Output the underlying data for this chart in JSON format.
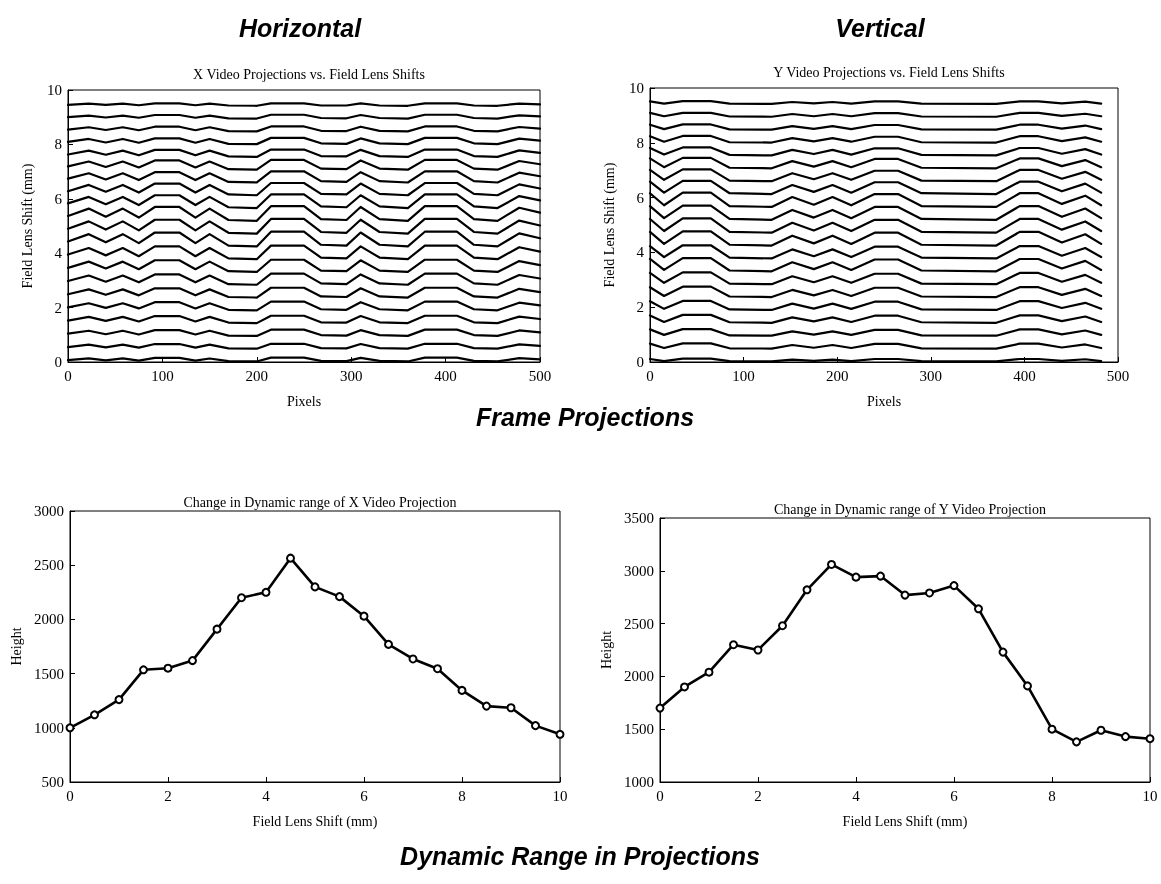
{
  "chart_data": [
    {
      "type": "line",
      "title": "X Video Projections vs. Field Lens Shifts",
      "xlabel": "Pixels",
      "ylabel": "Field Lens Shift (mm)",
      "annotations": [
        "Horizontal",
        "Frame Projections"
      ],
      "xlim": [
        0,
        500
      ],
      "xticks": [
        0,
        100,
        200,
        300,
        400,
        500
      ],
      "ylim": [
        0,
        10
      ],
      "yticks": [
        0,
        2,
        4,
        6,
        8,
        10
      ],
      "grid": false,
      "marker": "none",
      "x": [
        0,
        22,
        40,
        58,
        75,
        92,
        118,
        135,
        150,
        170,
        200,
        215,
        250,
        268,
        295,
        310,
        330,
        360,
        378,
        412,
        430,
        455,
        478,
        500
      ],
      "series": [
        {
          "color": "#000000",
          "values": [
            0.07,
            0.13,
            0.06,
            0.13,
            0.05,
            0.15,
            0.15,
            0.05,
            0.13,
            0.03,
            0.02,
            0.16,
            0.16,
            0.04,
            0.03,
            0.15,
            0.04,
            0.02,
            0.16,
            0.16,
            0.04,
            0.02,
            0.14,
            0.1
          ]
        },
        {
          "color": "#000000",
          "values": [
            0.55,
            0.64,
            0.54,
            0.64,
            0.53,
            0.66,
            0.66,
            0.53,
            0.64,
            0.5,
            0.49,
            0.67,
            0.67,
            0.51,
            0.5,
            0.66,
            0.51,
            0.49,
            0.67,
            0.67,
            0.51,
            0.49,
            0.65,
            0.59
          ]
        },
        {
          "color": "#000000",
          "values": [
            1.04,
            1.15,
            1.02,
            1.15,
            1.01,
            1.17,
            1.17,
            1.01,
            1.15,
            0.97,
            0.96,
            1.19,
            1.19,
            0.99,
            0.97,
            1.17,
            0.99,
            0.96,
            1.19,
            1.19,
            0.99,
            0.96,
            1.16,
            1.09
          ]
        },
        {
          "color": "#000000",
          "values": [
            1.52,
            1.66,
            1.51,
            1.66,
            1.49,
            1.69,
            1.69,
            1.49,
            1.66,
            1.45,
            1.43,
            1.7,
            1.7,
            1.46,
            1.45,
            1.69,
            1.46,
            1.43,
            1.7,
            1.7,
            1.46,
            1.43,
            1.67,
            1.58
          ]
        },
        {
          "color": "#000000",
          "values": [
            2.01,
            2.16,
            1.99,
            2.16,
            1.97,
            2.2,
            2.2,
            1.97,
            2.16,
            1.92,
            1.9,
            2.22,
            2.22,
            1.94,
            1.92,
            2.2,
            1.94,
            1.9,
            2.22,
            2.22,
            1.94,
            1.9,
            2.18,
            2.08
          ]
        },
        {
          "color": "#000000",
          "values": [
            2.49,
            2.67,
            2.47,
            2.67,
            2.45,
            2.71,
            2.71,
            2.45,
            2.67,
            2.39,
            2.37,
            2.73,
            2.73,
            2.41,
            2.39,
            2.71,
            2.41,
            2.37,
            2.73,
            2.73,
            2.41,
            2.37,
            2.69,
            2.57
          ]
        },
        {
          "color": "#000000",
          "values": [
            2.98,
            3.18,
            2.95,
            3.18,
            2.93,
            3.22,
            3.22,
            2.93,
            3.18,
            2.86,
            2.84,
            3.25,
            3.25,
            2.89,
            2.86,
            3.22,
            2.89,
            2.84,
            3.25,
            3.25,
            2.89,
            2.84,
            3.2,
            3.07
          ]
        },
        {
          "color": "#000000",
          "values": [
            3.46,
            3.69,
            3.44,
            3.69,
            3.41,
            3.74,
            3.74,
            3.41,
            3.69,
            3.34,
            3.31,
            3.76,
            3.76,
            3.36,
            3.34,
            3.74,
            3.36,
            3.31,
            3.76,
            3.76,
            3.36,
            3.31,
            3.71,
            3.56
          ]
        },
        {
          "color": "#000000",
          "values": [
            3.95,
            4.19,
            3.92,
            4.19,
            3.89,
            4.25,
            4.25,
            3.89,
            4.19,
            3.81,
            3.78,
            4.28,
            4.28,
            3.84,
            3.81,
            4.25,
            3.84,
            3.78,
            4.28,
            4.28,
            3.84,
            3.78,
            4.22,
            4.06
          ]
        },
        {
          "color": "#000000",
          "values": [
            4.43,
            4.7,
            4.4,
            4.7,
            4.37,
            4.76,
            4.76,
            4.37,
            4.7,
            4.28,
            4.25,
            4.79,
            4.79,
            4.31,
            4.28,
            4.76,
            4.31,
            4.25,
            4.79,
            4.79,
            4.31,
            4.25,
            4.73,
            4.55
          ]
        },
        {
          "color": "#000000",
          "values": [
            4.9,
            5.17,
            4.87,
            5.17,
            4.84,
            5.23,
            5.23,
            4.84,
            5.17,
            4.75,
            4.72,
            5.26,
            5.26,
            4.78,
            4.75,
            5.23,
            4.78,
            4.72,
            5.26,
            5.26,
            4.78,
            4.72,
            5.2,
            5.02
          ]
        },
        {
          "color": "#000000",
          "values": [
            5.37,
            5.64,
            5.34,
            5.64,
            5.31,
            5.7,
            5.7,
            5.31,
            5.64,
            5.22,
            5.19,
            5.73,
            5.73,
            5.25,
            5.22,
            5.7,
            5.25,
            5.19,
            5.73,
            5.73,
            5.25,
            5.19,
            5.67,
            5.49
          ]
        },
        {
          "color": "#000000",
          "values": [
            5.83,
            6.07,
            5.8,
            6.07,
            5.77,
            6.13,
            6.13,
            5.77,
            6.07,
            5.69,
            5.66,
            6.16,
            6.16,
            5.72,
            5.69,
            6.13,
            5.72,
            5.66,
            6.16,
            6.16,
            5.72,
            5.66,
            6.1,
            5.94
          ]
        },
        {
          "color": "#000000",
          "values": [
            6.28,
            6.51,
            6.26,
            6.51,
            6.23,
            6.56,
            6.56,
            6.23,
            6.51,
            6.16,
            6.13,
            6.58,
            6.58,
            6.18,
            6.16,
            6.56,
            6.18,
            6.13,
            6.58,
            6.58,
            6.18,
            6.13,
            6.53,
            6.38
          ]
        },
        {
          "color": "#000000",
          "values": [
            6.74,
            6.94,
            6.71,
            6.94,
            6.69,
            6.98,
            6.98,
            6.69,
            6.94,
            6.62,
            6.6,
            7.01,
            7.01,
            6.65,
            6.62,
            6.98,
            6.65,
            6.6,
            7.01,
            7.01,
            6.65,
            6.6,
            6.96,
            6.83
          ]
        },
        {
          "color": "#000000",
          "values": [
            7.19,
            7.37,
            7.17,
            7.37,
            7.15,
            7.41,
            7.41,
            7.15,
            7.37,
            7.09,
            7.07,
            7.43,
            7.43,
            7.11,
            7.09,
            7.41,
            7.11,
            7.07,
            7.43,
            7.43,
            7.11,
            7.07,
            7.39,
            7.27
          ]
        },
        {
          "color": "#000000",
          "values": [
            7.63,
            7.77,
            7.62,
            7.77,
            7.6,
            7.8,
            7.8,
            7.6,
            7.77,
            7.56,
            7.54,
            7.81,
            7.81,
            7.57,
            7.56,
            7.8,
            7.57,
            7.54,
            7.81,
            7.81,
            7.57,
            7.54,
            7.78,
            7.69
          ]
        },
        {
          "color": "#000000",
          "values": [
            8.09,
            8.2,
            8.07,
            8.2,
            8.06,
            8.22,
            8.22,
            8.06,
            8.2,
            8.02,
            8.01,
            8.24,
            8.24,
            8.04,
            8.02,
            8.22,
            8.04,
            8.01,
            8.24,
            8.24,
            8.04,
            8.01,
            8.21,
            8.14
          ]
        },
        {
          "color": "#000000",
          "values": [
            8.54,
            8.63,
            8.53,
            8.63,
            8.52,
            8.65,
            8.65,
            8.52,
            8.63,
            8.49,
            8.48,
            8.66,
            8.66,
            8.5,
            8.49,
            8.65,
            8.5,
            8.48,
            8.66,
            8.66,
            8.5,
            8.48,
            8.64,
            8.58
          ]
        },
        {
          "color": "#000000",
          "values": [
            9,
            9.06,
            8.99,
            9.06,
            8.98,
            9.08,
            9.08,
            8.98,
            9.06,
            8.96,
            8.95,
            9.09,
            9.09,
            8.97,
            8.96,
            9.08,
            8.97,
            8.95,
            9.09,
            9.09,
            8.97,
            8.95,
            9.07,
            9.03
          ]
        },
        {
          "color": "#000000",
          "values": [
            9.45,
            9.5,
            9.45,
            9.5,
            9.44,
            9.51,
            9.51,
            9.44,
            9.5,
            9.43,
            9.42,
            9.51,
            9.51,
            9.43,
            9.43,
            9.51,
            9.43,
            9.42,
            9.51,
            9.51,
            9.43,
            9.42,
            9.5,
            9.47
          ]
        }
      ]
    },
    {
      "type": "line",
      "title": "Y Video Projections vs. Field Lens Shifts",
      "xlabel": "Pixels",
      "ylabel": "Field Lens Shift (mm)",
      "annotations": [
        "Vertical"
      ],
      "xlim": [
        0,
        500
      ],
      "xticks": [
        0,
        100,
        200,
        300,
        400,
        500
      ],
      "ylim": [
        0,
        10
      ],
      "yticks": [
        0,
        2,
        4,
        6,
        8,
        10
      ],
      "grid": false,
      "marker": "none",
      "x": [
        0,
        15,
        35,
        65,
        85,
        130,
        152,
        175,
        195,
        215,
        240,
        265,
        290,
        370,
        395,
        415,
        440,
        465,
        482
      ],
      "series": [
        {
          "color": "#000000",
          "values": [
            0.11,
            0.03,
            0.12,
            0.12,
            0.03,
            0.02,
            0.09,
            0.04,
            0.09,
            0.03,
            0.11,
            0.11,
            0.03,
            0.02,
            0.11,
            0.11,
            0.04,
            0.1,
            0.03
          ]
        },
        {
          "color": "#000000",
          "values": [
            0.67,
            0.51,
            0.68,
            0.68,
            0.5,
            0.49,
            0.62,
            0.52,
            0.62,
            0.51,
            0.66,
            0.66,
            0.5,
            0.49,
            0.67,
            0.67,
            0.53,
            0.64,
            0.51
          ]
        },
        {
          "color": "#000000",
          "values": [
            1.19,
            0.99,
            1.2,
            1.2,
            0.97,
            0.96,
            1.12,
            1,
            1.12,
            0.99,
            1.17,
            1.17,
            0.97,
            0.96,
            1.19,
            1.19,
            1.01,
            1.15,
            0.99
          ]
        },
        {
          "color": "#000000",
          "values": [
            1.7,
            1.46,
            1.72,
            1.72,
            1.45,
            1.43,
            1.63,
            1.48,
            1.63,
            1.46,
            1.69,
            1.69,
            1.45,
            1.43,
            1.7,
            1.7,
            1.49,
            1.66,
            1.46
          ]
        },
        {
          "color": "#000000",
          "values": [
            2.22,
            1.94,
            2.23,
            2.23,
            1.92,
            1.9,
            2.13,
            1.95,
            2.13,
            1.94,
            2.2,
            2.2,
            1.92,
            1.9,
            2.22,
            2.22,
            1.97,
            2.16,
            1.94
          ]
        },
        {
          "color": "#000000",
          "values": [
            2.73,
            2.41,
            2.75,
            2.75,
            2.39,
            2.37,
            2.63,
            2.43,
            2.63,
            2.41,
            2.71,
            2.71,
            2.39,
            2.37,
            2.73,
            2.73,
            2.45,
            2.67,
            2.41
          ]
        },
        {
          "color": "#000000",
          "values": [
            3.25,
            2.89,
            3.27,
            3.27,
            2.86,
            2.84,
            3.13,
            2.91,
            3.13,
            2.89,
            3.22,
            3.22,
            2.86,
            2.84,
            3.25,
            3.25,
            2.93,
            3.18,
            2.89
          ]
        },
        {
          "color": "#000000",
          "values": [
            3.76,
            3.36,
            3.79,
            3.79,
            3.34,
            3.31,
            3.64,
            3.39,
            3.64,
            3.36,
            3.74,
            3.74,
            3.34,
            3.31,
            3.76,
            3.76,
            3.41,
            3.69,
            3.36
          ]
        },
        {
          "color": "#000000",
          "values": [
            4.23,
            3.83,
            4.26,
            4.26,
            3.81,
            3.78,
            4.11,
            3.86,
            4.11,
            3.83,
            4.21,
            4.21,
            3.81,
            3.78,
            4.23,
            4.23,
            3.88,
            4.16,
            3.83
          ]
        },
        {
          "color": "#000000",
          "values": [
            4.75,
            4.31,
            4.77,
            4.77,
            4.28,
            4.25,
            4.61,
            4.33,
            4.61,
            4.31,
            4.72,
            4.72,
            4.28,
            4.25,
            4.75,
            4.75,
            4.36,
            4.66,
            4.31
          ]
        },
        {
          "color": "#000000",
          "values": [
            5.22,
            4.78,
            5.24,
            5.24,
            4.75,
            4.72,
            5.08,
            4.8,
            5.08,
            4.78,
            5.19,
            5.19,
            4.75,
            4.72,
            5.22,
            5.22,
            4.83,
            5.13,
            4.78
          ]
        },
        {
          "color": "#000000",
          "values": [
            5.69,
            5.25,
            5.71,
            5.71,
            5.22,
            5.19,
            5.55,
            5.27,
            5.55,
            5.25,
            5.66,
            5.66,
            5.22,
            5.19,
            5.69,
            5.69,
            5.3,
            5.6,
            5.25
          ]
        },
        {
          "color": "#000000",
          "values": [
            6.16,
            5.72,
            6.18,
            6.18,
            5.69,
            5.66,
            6.02,
            5.74,
            6.02,
            5.72,
            6.13,
            6.13,
            5.69,
            5.66,
            6.16,
            6.16,
            5.77,
            6.07,
            5.72
          ]
        },
        {
          "color": "#000000",
          "values": [
            6.58,
            6.18,
            6.61,
            6.61,
            6.16,
            6.13,
            6.46,
            6.21,
            6.46,
            6.18,
            6.56,
            6.56,
            6.16,
            6.13,
            6.58,
            6.58,
            6.23,
            6.51,
            6.18
          ]
        },
        {
          "color": "#000000",
          "values": [
            7.01,
            6.65,
            7.03,
            7.03,
            6.62,
            6.6,
            6.89,
            6.67,
            6.89,
            6.65,
            6.98,
            6.98,
            6.62,
            6.6,
            7.01,
            7.01,
            6.69,
            6.94,
            6.65
          ]
        },
        {
          "color": "#000000",
          "values": [
            7.43,
            7.11,
            7.45,
            7.45,
            7.09,
            7.07,
            7.33,
            7.13,
            7.33,
            7.11,
            7.41,
            7.41,
            7.09,
            7.07,
            7.43,
            7.43,
            7.15,
            7.37,
            7.11
          ]
        },
        {
          "color": "#000000",
          "values": [
            7.81,
            7.57,
            7.83,
            7.83,
            7.56,
            7.54,
            7.74,
            7.59,
            7.74,
            7.57,
            7.8,
            7.8,
            7.56,
            7.54,
            7.81,
            7.81,
            7.6,
            7.77,
            7.57
          ]
        },
        {
          "color": "#000000",
          "values": [
            8.24,
            8.04,
            8.25,
            8.25,
            8.02,
            8.01,
            8.17,
            8.05,
            8.17,
            8.04,
            8.22,
            8.22,
            8.02,
            8.01,
            8.24,
            8.24,
            8.06,
            8.2,
            8.04
          ]
        },
        {
          "color": "#000000",
          "values": [
            8.66,
            8.5,
            8.67,
            8.67,
            8.49,
            8.48,
            8.61,
            8.51,
            8.61,
            8.5,
            8.65,
            8.65,
            8.49,
            8.48,
            8.66,
            8.66,
            8.52,
            8.63,
            8.5
          ]
        },
        {
          "color": "#000000",
          "values": [
            9.09,
            8.97,
            9.09,
            9.09,
            8.96,
            8.95,
            9.05,
            8.97,
            9.05,
            8.97,
            9.08,
            9.08,
            8.96,
            8.95,
            9.09,
            9.09,
            8.98,
            9.06,
            8.97
          ]
        },
        {
          "color": "#000000",
          "values": [
            9.51,
            9.43,
            9.52,
            9.52,
            9.43,
            9.42,
            9.49,
            9.44,
            9.49,
            9.43,
            9.51,
            9.51,
            9.43,
            9.42,
            9.51,
            9.51,
            9.44,
            9.5,
            9.43
          ]
        }
      ]
    },
    {
      "type": "line",
      "title": "Change in Dynamic range of X Video Projection",
      "xlabel": "Field Lens Shift (mm)",
      "ylabel": "Height",
      "annotations": [
        "Dynamic Range in Projections"
      ],
      "xlim": [
        0,
        10
      ],
      "xticks": [
        0,
        2,
        4,
        6,
        8,
        10
      ],
      "ylim": [
        500,
        3000
      ],
      "yticks": [
        500,
        1000,
        1500,
        2000,
        2500,
        3000
      ],
      "grid": false,
      "marker": "circle",
      "x": [
        0,
        0.5,
        1,
        1.5,
        2,
        2.5,
        3,
        3.5,
        4,
        4.5,
        5,
        5.5,
        6,
        6.5,
        7,
        7.5,
        8,
        8.5,
        9,
        9.5,
        10
      ],
      "series": [
        {
          "color": "#000000",
          "values": [
            1000,
            1120,
            1260,
            1535,
            1550,
            1620,
            1910,
            2200,
            2250,
            2565,
            2300,
            2210,
            2030,
            1770,
            1635,
            1545,
            1345,
            1200,
            1185,
            1020,
            940
          ]
        }
      ]
    },
    {
      "type": "line",
      "title": "Change in Dynamic range of Y Video Projection",
      "xlabel": "Field Lens Shift (mm)",
      "ylabel": "Height",
      "xlim": [
        0,
        10
      ],
      "xticks": [
        0,
        2,
        4,
        6,
        8,
        10
      ],
      "ylim": [
        1000,
        3500
      ],
      "yticks": [
        1000,
        1500,
        2000,
        2500,
        3000,
        3500
      ],
      "grid": false,
      "marker": "circle",
      "x": [
        0,
        0.5,
        1,
        1.5,
        2,
        2.5,
        3,
        3.5,
        4,
        4.5,
        5,
        5.5,
        6,
        6.5,
        7,
        7.5,
        8,
        8.5,
        9,
        9.5,
        10
      ],
      "series": [
        {
          "color": "#000000",
          "values": [
            1700,
            1900,
            2040,
            2300,
            2250,
            2480,
            2820,
            3060,
            2940,
            2950,
            2770,
            2790,
            2860,
            2640,
            2230,
            1910,
            1500,
            1380,
            1490,
            1430,
            1410
          ]
        }
      ]
    }
  ]
}
